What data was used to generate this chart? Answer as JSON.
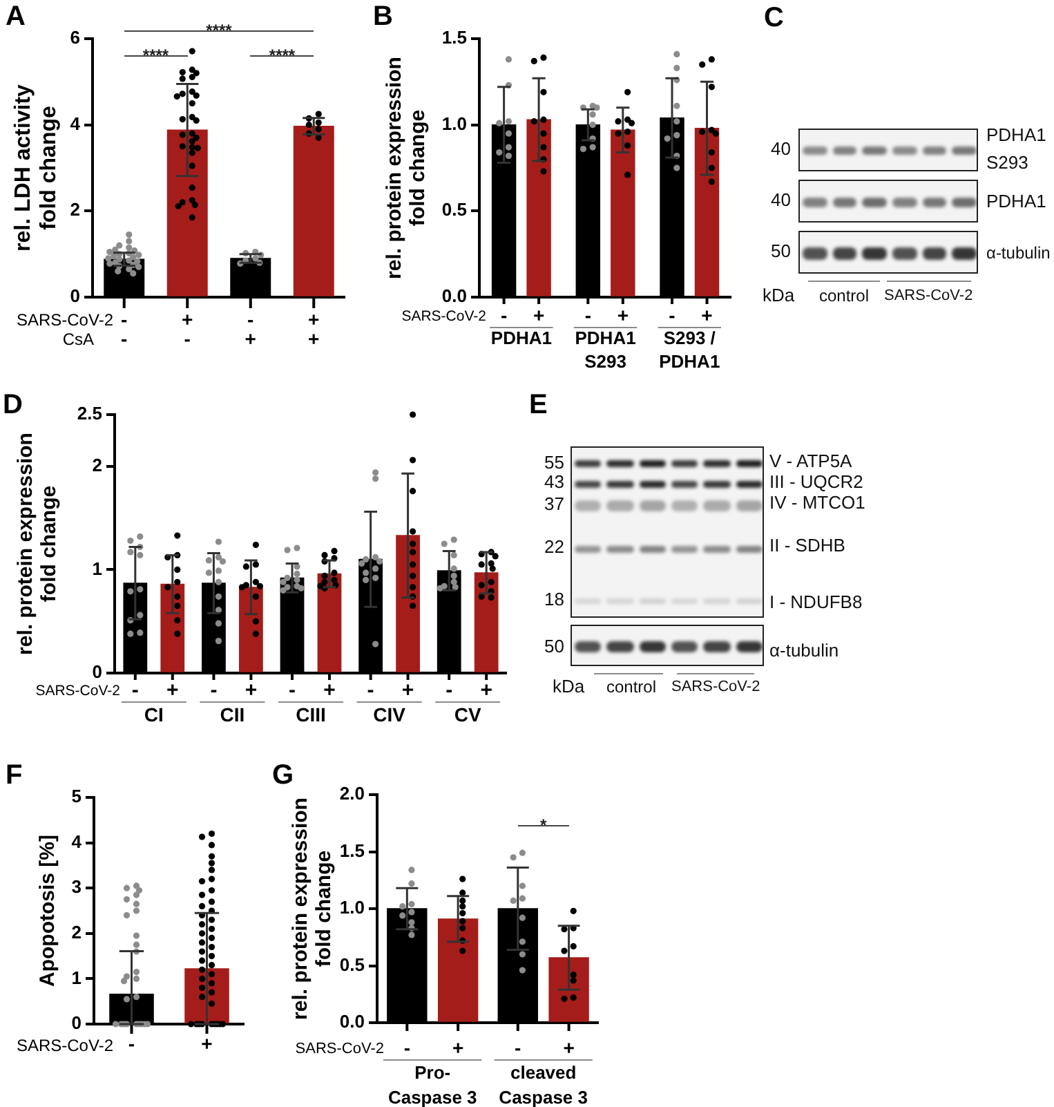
{
  "chart_data": [
    {
      "type": "bar",
      "title": "A",
      "ylabel": "rel. LDH activity\nfold change",
      "categories": [
        "-\n-",
        "+\n-",
        "-\n+",
        "+\n+"
      ],
      "ylim": [
        0,
        6
      ],
      "yticks": [
        0,
        2,
        4,
        6
      ],
      "marker": "circle",
      "series": [
        {
          "values": [
            0.88,
            3.88,
            0.9,
            3.97
          ],
          "colors": [
            "#000000",
            "#a51d1a",
            "#000000",
            "#a51d1a"
          ],
          "errors": [
            0.15,
            1.07,
            0.1,
            0.19
          ]
        },
        {
          "type": "scatter",
          "color": "#8c8c8c",
          "x": [
            "-\n-",
            "-\n-",
            "-\n-",
            "-\n-",
            "-\n-",
            "-\n-",
            "-\n-",
            "-\n-",
            "-\n-",
            "-\n-",
            "-\n-",
            "-\n-",
            "-\n-",
            "-\n-",
            "-\n-",
            "-\n-",
            "-\n-",
            "-\n-",
            "-\n-",
            "-\n-",
            "-\n-",
            "-\n-",
            "-\n-",
            "-\n-",
            "-\n+",
            "-\n+",
            "-\n+",
            "-\n+",
            "-\n+",
            "-\n+",
            "-\n+"
          ],
          "values": [
            1.45,
            1.3,
            1.2,
            1.15,
            1.1,
            1.08,
            1.05,
            1.02,
            1.0,
            0.98,
            0.95,
            0.93,
            0.9,
            0.88,
            0.85,
            0.83,
            0.8,
            0.78,
            0.75,
            0.72,
            0.7,
            0.65,
            0.6,
            0.55,
            1.05,
            1.02,
            0.98,
            0.9,
            0.85,
            0.8,
            0.78
          ]
        },
        {
          "type": "scatter",
          "color": "#000000",
          "x": [
            "+\n-",
            "+\n-",
            "+\n-",
            "+\n-",
            "+\n-",
            "+\n-",
            "+\n-",
            "+\n-",
            "+\n-",
            "+\n-",
            "+\n-",
            "+\n-",
            "+\n-",
            "+\n-",
            "+\n-",
            "+\n-",
            "+\n-",
            "+\n-",
            "+\n-",
            "+\n-",
            "+\n-",
            "+\n-",
            "+\n-",
            "+\n-",
            "+\n-",
            "+\n-",
            "+\n-",
            "+\n-",
            "+\n-",
            "+\n+",
            "+\n+",
            "+\n+",
            "+\n+",
            "+\n+",
            "+\n+",
            "+\n+"
          ],
          "values": [
            5.71,
            5.28,
            5.22,
            5.2,
            5.11,
            5.07,
            4.77,
            4.72,
            4.68,
            4.66,
            4.5,
            4.18,
            4.13,
            4.1,
            3.8,
            3.77,
            3.7,
            3.62,
            3.5,
            3.48,
            3.46,
            3.35,
            3.05,
            2.54,
            2.25,
            2.2,
            2.14,
            2.11,
            1.85,
            4.25,
            4.15,
            4.05,
            4.0,
            3.9,
            3.8,
            3.7
          ]
        }
      ],
      "annotations": [
        "SARS-CoV-2",
        "CsA",
        "****",
        "****",
        "****"
      ]
    },
    {
      "type": "bar",
      "title": "B",
      "ylabel": "rel. protein expression\nfold change",
      "categories": [
        "PDHA1",
        "PDHA1\nS293",
        "S293 /\nPDHA1"
      ],
      "ylim": [
        0,
        1.5
      ],
      "yticks": [
        {
          "value": 0,
          "label": "0.0"
        },
        {
          "value": 0.5,
          "label": "0.5"
        },
        {
          "value": 1,
          "label": "1.0"
        },
        {
          "value": 1.5,
          "label": "1.5"
        }
      ],
      "marker": "circle",
      "series": [
        {
          "color": "#000000",
          "values": [
            1.0,
            1.0,
            1.04
          ],
          "errors": [
            0.22,
            0.09,
            0.23
          ]
        },
        {
          "color": "#a51d1a",
          "values": [
            1.03,
            0.97,
            0.98
          ],
          "errors": [
            0.24,
            0.13,
            0.27
          ]
        },
        {
          "type": "scatter",
          "color": "#8c8c8c",
          "x": [
            "PDHA1",
            "PDHA1",
            "PDHA1",
            "PDHA1",
            "PDHA1",
            "PDHA1",
            "PDHA1",
            "PDHA1",
            "PDHA1\nS293",
            "PDHA1\nS293",
            "PDHA1\nS293",
            "PDHA1\nS293",
            "PDHA1\nS293",
            "PDHA1\nS293",
            "PDHA1\nS293",
            "PDHA1\nS293",
            "S293 /\nPDHA1",
            "S293 /\nPDHA1",
            "S293 /\nPDHA1",
            "S293 /\nPDHA1",
            "S293 /\nPDHA1",
            "S293 /\nPDHA1",
            "S293 /\nPDHA1",
            "S293 /\nPDHA1",
            "S293 /\nPDHA1"
          ],
          "values": [
            1.38,
            1.23,
            1.02,
            1.01,
            0.95,
            0.87,
            0.84,
            0.82,
            1.11,
            1.1,
            1.1,
            1.06,
            1.0,
            0.92,
            0.87,
            0.86,
            1.41,
            1.33,
            1.26,
            1.11,
            1.02,
            0.94,
            0.92,
            0.82,
            0.75
          ]
        },
        {
          "type": "scatter",
          "color": "#000000",
          "x": [
            "PDHA1",
            "PDHA1",
            "PDHA1",
            "PDHA1",
            "PDHA1",
            "PDHA1",
            "PDHA1",
            "PDHA1",
            "PDHA1",
            "PDHA1\nS293",
            "PDHA1\nS293",
            "PDHA1\nS293",
            "PDHA1\nS293",
            "PDHA1\nS293",
            "PDHA1\nS293",
            "PDHA1\nS293",
            "PDHA1\nS293",
            "S293 /\nPDHA1",
            "S293 /\nPDHA1",
            "S293 /\nPDHA1",
            "S293 /\nPDHA1",
            "S293 /\nPDHA1",
            "S293 /\nPDHA1",
            "S293 /\nPDHA1",
            "S293 /\nPDHA1",
            "S293 /\nPDHA1"
          ],
          "values": [
            1.39,
            1.37,
            1.19,
            1.03,
            1.02,
            0.95,
            0.87,
            0.8,
            0.73,
            1.19,
            1.03,
            1.02,
            1.01,
            0.96,
            0.95,
            0.88,
            0.71,
            1.38,
            1.35,
            1.22,
            0.97,
            0.96,
            0.95,
            0.84,
            0.75,
            0.67
          ]
        }
      ],
      "annotations": [
        "SARS-CoV-2",
        "-",
        "+",
        "-",
        "+",
        "-",
        "+"
      ]
    },
    {
      "type": "other",
      "title": "C",
      "annotations": [
        "40",
        "40",
        "50",
        "kDa",
        "control",
        "SARS-CoV-2",
        "PDHA1\nS293",
        "PDHA1",
        "α-tubulin"
      ]
    },
    {
      "type": "bar",
      "title": "D",
      "ylabel": "rel. protein expression\nfold change",
      "categories": [
        "CI",
        "CII",
        "CIII",
        "CIV",
        "CV"
      ],
      "ylim": [
        0,
        2.5
      ],
      "yticks": [
        0,
        1,
        2,
        2.5
      ],
      "marker": "circle",
      "series": [
        {
          "color": "#000000",
          "values": [
            0.87,
            0.87,
            0.92,
            1.1,
            0.99
          ],
          "errors": [
            0.35,
            0.29,
            0.14,
            0.46,
            0.19
          ]
        },
        {
          "color": "#a51d1a",
          "values": [
            0.86,
            0.83,
            0.96,
            1.33,
            0.97
          ],
          "errors": [
            0.28,
            0.26,
            0.13,
            0.6,
            0.2
          ]
        },
        {
          "type": "scatter",
          "color": "#8c8c8c",
          "x": [
            "CI",
            "CI",
            "CI",
            "CI",
            "CI",
            "CI",
            "CI",
            "CI",
            "CI",
            "CI",
            "CI",
            "CII",
            "CII",
            "CII",
            "CII",
            "CII",
            "CII",
            "CII",
            "CII",
            "CII",
            "CII",
            "CII",
            "CIII",
            "CIII",
            "CIII",
            "CIII",
            "CIII",
            "CIII",
            "CIII",
            "CIII",
            "CIII",
            "CIII",
            "CIII",
            "CIV",
            "CIV",
            "CIV",
            "CIV",
            "CIV",
            "CIV",
            "CIV",
            "CIV",
            "CIV",
            "CIV",
            "CIV",
            "CV",
            "CV",
            "CV",
            "CV",
            "CV",
            "CV",
            "CV",
            "CV",
            "CV"
          ],
          "values": [
            1.32,
            1.28,
            1.22,
            1.17,
            1.14,
            0.81,
            0.79,
            0.56,
            0.51,
            0.39,
            0.38,
            1.27,
            1.12,
            1.09,
            1.08,
            0.99,
            0.97,
            0.88,
            0.74,
            0.61,
            0.48,
            0.31,
            1.21,
            1.19,
            1.03,
            0.96,
            0.92,
            0.9,
            0.88,
            0.84,
            0.83,
            0.82,
            0.8,
            1.94,
            1.88,
            1.12,
            1.1,
            1.08,
            1.06,
            1.01,
            0.97,
            0.92,
            0.9,
            0.28,
            1.29,
            1.25,
            1.14,
            1.01,
            0.94,
            0.88,
            0.84,
            0.83,
            0.82
          ]
        },
        {
          "type": "scatter",
          "color": "#000000",
          "x": [
            "CI",
            "CI",
            "CI",
            "CI",
            "CI",
            "CI",
            "CI",
            "CI",
            "CI",
            "CI",
            "CII",
            "CII",
            "CII",
            "CII",
            "CII",
            "CII",
            "CII",
            "CII",
            "CII",
            "CII",
            "CIII",
            "CIII",
            "CIII",
            "CIII",
            "CIII",
            "CIII",
            "CIII",
            "CIII",
            "CIII",
            "CIII",
            "CIII",
            "CIV",
            "CIV",
            "CIV",
            "CIV",
            "CIV",
            "CIV",
            "CIV",
            "CIV",
            "CIV",
            "CIV",
            "CIV",
            "CV",
            "CV",
            "CV",
            "CV",
            "CV",
            "CV",
            "CV",
            "CV",
            "CV",
            "CV",
            "CV"
          ],
          "values": [
            1.33,
            1.14,
            1.12,
            1.0,
            0.88,
            0.83,
            0.74,
            0.65,
            0.51,
            0.38,
            1.24,
            1.05,
            1.03,
            0.88,
            0.85,
            0.84,
            0.83,
            0.74,
            0.5,
            0.38,
            1.18,
            1.14,
            1.11,
            1.08,
            0.97,
            0.94,
            0.9,
            0.88,
            0.85,
            0.84,
            0.82,
            2.5,
            2.06,
            1.76,
            1.37,
            1.25,
            1.17,
            1.05,
            0.94,
            0.83,
            0.74,
            0.65,
            1.17,
            1.15,
            1.13,
            1.06,
            1.05,
            1.01,
            0.88,
            0.85,
            0.79,
            0.74,
            0.73
          ]
        }
      ],
      "annotations": [
        "SARS-CoV-2",
        "-",
        "+",
        "-",
        "+",
        "-",
        "+",
        "-",
        "+",
        "-",
        "+"
      ]
    },
    {
      "type": "other",
      "title": "E",
      "annotations": [
        "55",
        "43",
        "37",
        "22",
        "18",
        "50",
        "V - ATP5A",
        "III - UQCR2",
        "IV - MTCO1",
        "II - SDHB",
        "I - NDUFB8",
        "α-tubulin",
        "kDa",
        "control",
        "SARS-CoV-2"
      ]
    },
    {
      "type": "bar",
      "title": "F",
      "ylabel": "Apopotosis [%]",
      "categories": [
        "-",
        "+"
      ],
      "ylim": [
        0,
        5
      ],
      "yticks": [
        0,
        1,
        2,
        3,
        4,
        5
      ],
      "marker": "circle",
      "series": [
        {
          "values": [
            0.66,
            1.22
          ],
          "colors": [
            "#000000",
            "#a51d1a"
          ],
          "errors": [
            [
              0,
              1.61
            ],
            [
              0,
              2.45
            ]
          ]
        },
        {
          "type": "scatter",
          "color": "#8c8c8c",
          "x": [
            "-",
            "-",
            "-",
            "-",
            "-",
            "-",
            "-",
            "-",
            "-",
            "-",
            "-",
            "-",
            "-",
            "-",
            "-",
            "-",
            "-",
            "-",
            "-",
            "-",
            "-",
            "-",
            "-",
            "-",
            "-",
            "-"
          ],
          "values": [
            3.05,
            3.0,
            2.95,
            2.85,
            2.75,
            2.65,
            2.5,
            2.4,
            1.95,
            1.75,
            1.6,
            1.15,
            1.05,
            1.0,
            0.95,
            0.6,
            0.55,
            0,
            0,
            0,
            0,
            0,
            0,
            0,
            0,
            0
          ]
        },
        {
          "type": "scatter",
          "color": "#000000",
          "x": [
            "+",
            "+",
            "+",
            "+",
            "+",
            "+",
            "+",
            "+",
            "+",
            "+",
            "+",
            "+",
            "+",
            "+",
            "+",
            "+",
            "+",
            "+",
            "+",
            "+",
            "+",
            "+",
            "+",
            "+",
            "+",
            "+",
            "+",
            "+",
            "+",
            "+",
            "+",
            "+",
            "+",
            "+",
            "+",
            "+",
            "+",
            "+",
            "+",
            "+",
            "+",
            "+"
          ],
          "values": [
            4.2,
            4.13,
            3.95,
            3.7,
            3.55,
            3.4,
            3.2,
            3.15,
            2.95,
            2.85,
            2.7,
            2.6,
            2.5,
            2.4,
            2.3,
            2.2,
            2.1,
            2.0,
            1.9,
            1.8,
            1.7,
            1.6,
            1.5,
            1.4,
            1.3,
            1.2,
            1.1,
            1.0,
            0.9,
            0.8,
            0.7,
            0.6,
            0.45,
            0,
            0,
            0,
            0,
            0,
            0,
            0,
            0,
            0
          ]
        }
      ],
      "annotations": [
        "SARS-CoV-2"
      ]
    },
    {
      "type": "bar",
      "title": "G",
      "ylabel": "rel. protein expression\nfold change",
      "categories": [
        "Pro-\nCaspase 3",
        "cleaved\nCaspase 3"
      ],
      "ylim": [
        0,
        2
      ],
      "yticks": [
        {
          "value": 0,
          "label": "0.0"
        },
        {
          "value": 0.5,
          "label": "0.5"
        },
        {
          "value": 1,
          "label": "1.0"
        },
        {
          "value": 1.5,
          "label": "1.5"
        },
        {
          "value": 2,
          "label": "2.0"
        }
      ],
      "marker": "circle",
      "series": [
        {
          "color": "#000000",
          "values": [
            1.0,
            1.0
          ],
          "errors": [
            0.18,
            0.36
          ]
        },
        {
          "color": "#a51d1a",
          "values": [
            0.91,
            0.57
          ],
          "errors": [
            0.2,
            0.28
          ]
        },
        {
          "type": "scatter",
          "color": "#8c8c8c",
          "x": [
            "Pro-\nCaspase 3",
            "Pro-\nCaspase 3",
            "Pro-\nCaspase 3",
            "Pro-\nCaspase 3",
            "Pro-\nCaspase 3",
            "Pro-\nCaspase 3",
            "Pro-\nCaspase 3",
            "Pro-\nCaspase 3",
            "Pro-\nCaspase 3",
            "cleaved\nCaspase 3",
            "cleaved\nCaspase 3",
            "cleaved\nCaspase 3",
            "cleaved\nCaspase 3",
            "cleaved\nCaspase 3",
            "cleaved\nCaspase 3",
            "cleaved\nCaspase 3",
            "cleaved\nCaspase 3",
            "cleaved\nCaspase 3"
          ],
          "values": [
            1.34,
            1.22,
            1.04,
            1.02,
            0.97,
            0.94,
            0.88,
            0.83,
            0.77,
            1.49,
            1.45,
            1.2,
            1.09,
            1.07,
            0.92,
            0.71,
            0.6,
            0.46
          ]
        },
        {
          "type": "scatter",
          "color": "#000000",
          "x": [
            "Pro-\nCaspase 3",
            "Pro-\nCaspase 3",
            "Pro-\nCaspase 3",
            "Pro-\nCaspase 3",
            "Pro-\nCaspase 3",
            "Pro-\nCaspase 3",
            "Pro-\nCaspase 3",
            "Pro-\nCaspase 3",
            "Pro-\nCaspase 3",
            "cleaved\nCaspase 3",
            "cleaved\nCaspase 3",
            "cleaved\nCaspase 3",
            "cleaved\nCaspase 3",
            "cleaved\nCaspase 3",
            "cleaved\nCaspase 3",
            "cleaved\nCaspase 3",
            "cleaved\nCaspase 3",
            "cleaved\nCaspase 3"
          ],
          "values": [
            1.26,
            1.14,
            1.07,
            1.02,
            0.96,
            0.89,
            0.83,
            0.72,
            0.63,
            0.98,
            0.83,
            0.82,
            0.67,
            0.63,
            0.42,
            0.37,
            0.22,
            0.21
          ]
        }
      ],
      "annotations": [
        "SARS-CoV-2",
        "-",
        "+",
        "-",
        "+",
        "*"
      ]
    }
  ]
}
